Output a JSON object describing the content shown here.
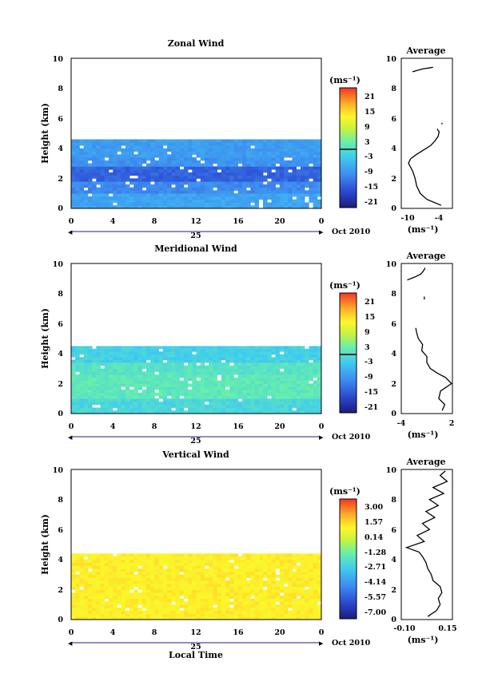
{
  "chart_data": [
    {
      "type": "heatmap",
      "title": "Zonal Wind",
      "xlabel": "",
      "ylabel": "Height (km)",
      "unit": "(ms⁻¹)",
      "xlim": [
        0,
        24
      ],
      "ylim": [
        0,
        10
      ],
      "x_ticks": [
        "0",
        "4",
        "8",
        "12",
        "16",
        "20",
        "0"
      ],
      "y_ticks": [
        "0",
        "2",
        "4",
        "6",
        "8",
        "10"
      ],
      "date_axis": {
        "day": "25",
        "month_label": "Oct 2010"
      },
      "colorbar": {
        "min": -24,
        "max": 24,
        "ticks": [
          "21",
          "15",
          "9",
          "3",
          "-3",
          "-9",
          "-15",
          "-21"
        ],
        "zero_line": 0
      },
      "data_top_km": 4.6,
      "layers": [
        {
          "from_km": 0.0,
          "to_km": 1.0,
          "value": -8
        },
        {
          "from_km": 1.0,
          "to_km": 1.8,
          "value": -11
        },
        {
          "from_km": 1.8,
          "to_km": 2.8,
          "value": -15
        },
        {
          "from_km": 2.8,
          "to_km": 3.4,
          "value": -10
        },
        {
          "from_km": 3.4,
          "to_km": 4.6,
          "value": -9
        }
      ],
      "profile": {
        "title": "Average",
        "xlabel": "(ms⁻¹)",
        "x_ticks": [
          "-10",
          "-4"
        ],
        "xlim": [
          -12,
          -2
        ],
        "ylim": [
          0,
          10
        ],
        "y_ticks": [
          "0",
          "2",
          "4",
          "6",
          "8",
          "10"
        ],
        "segments": [
          {
            "h": [
              0.2,
              0.6,
              1.0,
              1.5,
              2.0,
              2.5,
              3.0,
              3.3,
              3.6,
              3.9,
              4.2,
              4.5,
              4.8,
              5.1,
              5.3
            ],
            "v": [
              -4.2,
              -7.0,
              -8.3,
              -9.0,
              -9.3,
              -9.8,
              -10.6,
              -10.2,
              -9.0,
              -7.6,
              -6.2,
              -5.4,
              -4.8,
              -4.6,
              -5.0
            ]
          },
          {
            "h": [
              5.6,
              5.7
            ],
            "v": [
              -4.0,
              -4.1
            ]
          },
          {
            "h": [
              9.1,
              9.3,
              9.4
            ],
            "v": [
              -9.8,
              -7.8,
              -5.8
            ]
          }
        ]
      }
    },
    {
      "type": "heatmap",
      "title": "Meridional Wind",
      "xlabel": "",
      "ylabel": "Height (km)",
      "unit": "(ms⁻¹)",
      "xlim": [
        0,
        24
      ],
      "ylim": [
        0,
        10
      ],
      "x_ticks": [
        "0",
        "4",
        "8",
        "12",
        "16",
        "20",
        "0"
      ],
      "y_ticks": [
        "0",
        "2",
        "4",
        "6",
        "8",
        "10"
      ],
      "date_axis": {
        "day": "25",
        "month_label": "Oct 2010"
      },
      "colorbar": {
        "min": -24,
        "max": 24,
        "ticks": [
          "21",
          "15",
          "9",
          "3",
          "-3",
          "-9",
          "-15",
          "-21"
        ],
        "zero_line": 0
      },
      "data_top_km": 4.5,
      "layers": [
        {
          "from_km": 0.0,
          "to_km": 1.0,
          "value": -2
        },
        {
          "from_km": 1.0,
          "to_km": 2.6,
          "value": 1
        },
        {
          "from_km": 2.6,
          "to_km": 3.4,
          "value": 0
        },
        {
          "from_km": 3.4,
          "to_km": 4.5,
          "value": -3
        }
      ],
      "profile": {
        "title": "Average",
        "xlabel": "(ms⁻¹)",
        "x_ticks": [
          "-4",
          "2"
        ],
        "xlim": [
          -4,
          2
        ],
        "ylim": [
          0,
          10
        ],
        "y_ticks": [
          "0",
          "2",
          "4",
          "6",
          "8",
          "10"
        ],
        "segments": [
          {
            "h": [
              0.2,
              0.6,
              1.0,
              1.5,
              2.0,
              2.4,
              2.7,
              3.0,
              3.4,
              3.8,
              4.2,
              4.6,
              5.0,
              5.4,
              5.7
            ],
            "v": [
              0.8,
              1.1,
              0.4,
              0.6,
              1.9,
              1.2,
              0.2,
              -0.6,
              -1.0,
              -1.0,
              -1.6,
              -1.5,
              -2.0,
              -2.2,
              -2.3
            ]
          },
          {
            "h": [
              7.6,
              7.8
            ],
            "v": [
              -1.3,
              -1.3
            ]
          },
          {
            "h": [
              8.9,
              9.1,
              9.3,
              9.5,
              9.7
            ],
            "v": [
              -3.3,
              -2.4,
              -1.7,
              -1.4,
              -1.2
            ]
          }
        ]
      }
    },
    {
      "type": "heatmap",
      "title": "Vertical Wind",
      "xlabel": "Local Time",
      "ylabel": "Height (km)",
      "unit": "(ms⁻¹)",
      "xlim": [
        0,
        24
      ],
      "ylim": [
        0,
        10
      ],
      "x_ticks": [
        "0",
        "4",
        "8",
        "12",
        "16",
        "20",
        "0"
      ],
      "y_ticks": [
        "0",
        "2",
        "4",
        "6",
        "8",
        "10"
      ],
      "date_axis": {
        "day": "25",
        "month_label": "Oct 2010"
      },
      "colorbar": {
        "min": -8,
        "max": 4,
        "ticks": [
          "3.00",
          "1.57",
          "0.14",
          "-1.28",
          "-2.71",
          "-4.14",
          "-5.57",
          "-7.00"
        ]
      },
      "data_top_km": 4.4,
      "layers": [
        {
          "from_km": 0.0,
          "to_km": 4.4,
          "value": 1.2
        }
      ],
      "profile": {
        "title": "Average",
        "xlabel": "(ms⁻¹)",
        "x_ticks": [
          "-0.10",
          "0.15"
        ],
        "xlim": [
          -0.12,
          0.17
        ],
        "ylim": [
          0,
          10
        ],
        "y_ticks": [
          "0",
          "2",
          "4",
          "6",
          "8",
          "10"
        ],
        "segments": [
          {
            "h": [
              0.2,
              0.6,
              1.0,
              1.4,
              1.8,
              2.2,
              2.6,
              3.0,
              3.4,
              3.8,
              4.2,
              4.5,
              4.8,
              5.2,
              5.6,
              6.0,
              6.4,
              6.8,
              7.2,
              7.6,
              8.0,
              8.4,
              8.8,
              9.2,
              9.6,
              9.9
            ],
            "v": [
              0.03,
              0.08,
              0.1,
              0.09,
              0.11,
              0.1,
              0.06,
              0.05,
              0.03,
              0.02,
              0.0,
              -0.02,
              -0.09,
              0.01,
              -0.03,
              0.04,
              0.0,
              0.07,
              0.02,
              0.09,
              0.04,
              0.12,
              0.06,
              0.14,
              0.1,
              0.13
            ]
          }
        ]
      }
    }
  ]
}
